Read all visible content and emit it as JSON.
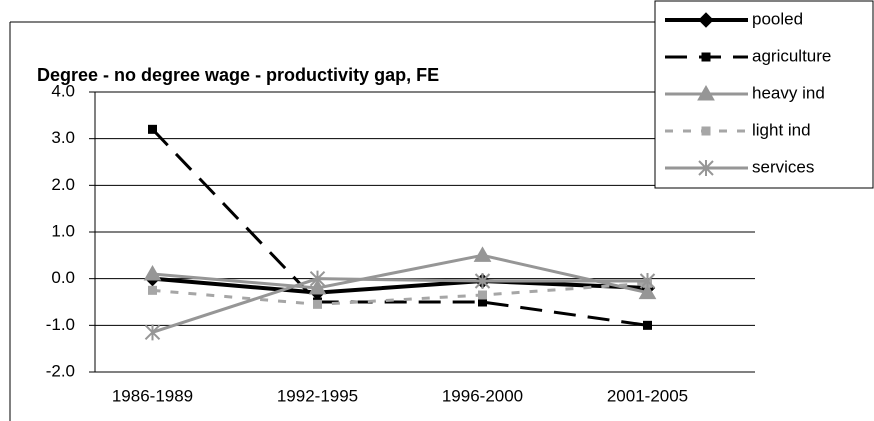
{
  "chart_data": {
    "type": "line",
    "title": "Degree - no degree wage - productivity gap, FE",
    "categories": [
      "1986-1989",
      "1992-1995",
      "1996-2000",
      "2001-2005"
    ],
    "series": [
      {
        "name": "pooled",
        "color": "#000000",
        "width": 4,
        "dash": "none",
        "marker": "diamond",
        "values": [
          0.0,
          -0.3,
          -0.05,
          -0.2
        ]
      },
      {
        "name": "agriculture",
        "color": "#000000",
        "width": 3,
        "dash": "22,12",
        "marker": "square",
        "values": [
          3.2,
          -0.5,
          -0.5,
          -1.0
        ]
      },
      {
        "name": "heavy ind",
        "color": "#969696",
        "width": 3,
        "dash": "none",
        "marker": "triangle",
        "values": [
          0.1,
          -0.2,
          0.5,
          -0.3
        ]
      },
      {
        "name": "light ind",
        "color": "#a6a6a6",
        "width": 3,
        "dash": "8,10",
        "marker": "square",
        "values": [
          -0.25,
          -0.55,
          -0.35,
          -0.1
        ]
      },
      {
        "name": "services",
        "color": "#969696",
        "width": 3,
        "dash": "none",
        "marker": "asterisk",
        "values": [
          -1.15,
          0.0,
          -0.05,
          -0.05
        ]
      }
    ],
    "ylim": [
      -2.0,
      4.0
    ],
    "yticks": [
      {
        "value": -2,
        "label": "-2.0"
      },
      {
        "value": -1,
        "label": "-1.0"
      },
      {
        "value": 0,
        "label": "0.0"
      },
      {
        "value": 1,
        "label": "1.0"
      },
      {
        "value": 2,
        "label": "2.0"
      },
      {
        "value": 3,
        "label": "3.0"
      },
      {
        "value": 4,
        "label": "4.0"
      }
    ],
    "grid": true,
    "legend": "top-right"
  }
}
